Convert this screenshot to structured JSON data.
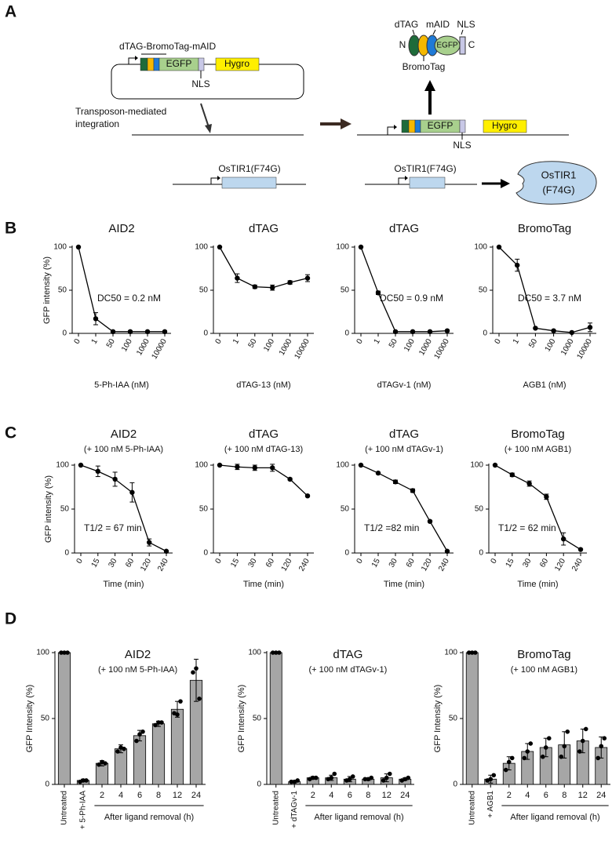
{
  "panel_labels": [
    "A",
    "B",
    "C",
    "D"
  ],
  "diagram": {
    "construct_label": "dTAG-BromoTag-mAID",
    "plasmid_egfp": "EGFP",
    "plasmid_hygro": "Hygro",
    "plasmid_nls": "NLS",
    "integration_lines": [
      "Transposon-mediated",
      "integration"
    ],
    "genome_egfp": "EGFP",
    "genome_hygro": "Hygro",
    "genome_nls": "NLS",
    "protein": {
      "n": "N",
      "c": "C",
      "dtag": "dTAG",
      "maid": "mAID",
      "nls": "NLS",
      "bromotag": "BromoTag",
      "egfp": "EGFP"
    },
    "ostir1_gene_left": "OsTIR1(F74G)",
    "ostir1_gene_right": "OsTIR1(F74G)",
    "ostir1_protein": [
      "OsTIR1",
      "(F74G)"
    ]
  },
  "chart_data": [
    {
      "type": "line",
      "title": "AID2",
      "categories": [
        "0",
        "1",
        "50",
        "100",
        "1000",
        "10000"
      ],
      "values": [
        100,
        17,
        2,
        2,
        2,
        2
      ],
      "errors": [
        0,
        7,
        1,
        1,
        0.5,
        1
      ],
      "color": "#000000",
      "ylim": [
        0,
        100
      ],
      "yticks": [
        0,
        50,
        100
      ],
      "ylabel": "GFP intensity (%)",
      "xlabel": "5-Ph-IAA (nM)",
      "annotation": "DC50 = 0.2 nM"
    },
    {
      "type": "line",
      "title": "dTAG",
      "categories": [
        "0",
        "1",
        "50",
        "100",
        "1000",
        "10000"
      ],
      "values": [
        100,
        64,
        54,
        53,
        59,
        64
      ],
      "errors": [
        0,
        5,
        2,
        3,
        2,
        4
      ],
      "color": "#000000",
      "ylim": [
        0,
        100
      ],
      "yticks": [
        0,
        50,
        100
      ],
      "xlabel": "dTAG-13 (nM)"
    },
    {
      "type": "line",
      "title": "dTAG",
      "categories": [
        "0",
        "1",
        "50",
        "100",
        "1000",
        "10000"
      ],
      "values": [
        100,
        47,
        2,
        2,
        2,
        3
      ],
      "errors": [
        0,
        2,
        1,
        0.5,
        0.5,
        1
      ],
      "color": "#000000",
      "ylim": [
        0,
        100
      ],
      "yticks": [
        0,
        50,
        100
      ],
      "xlabel": "dTAGv-1 (nM)",
      "annotation": "DC50 = 0.9 nM"
    },
    {
      "type": "line",
      "title": "BromoTag",
      "categories": [
        "0",
        "1",
        "50",
        "100",
        "1000",
        "10000"
      ],
      "values": [
        100,
        79,
        6,
        3,
        1,
        7
      ],
      "errors": [
        0,
        7,
        0.5,
        0.5,
        0.5,
        5
      ],
      "color": "#000000",
      "ylim": [
        0,
        100
      ],
      "yticks": [
        0,
        50,
        100
      ],
      "xlabel": "AGB1 (nM)",
      "annotation": "DC50 = 3.7 nM"
    },
    {
      "type": "line",
      "title": "AID2",
      "subtitle": "(+ 100 nM 5-Ph-IAA)",
      "categories": [
        "0",
        "15",
        "30",
        "60",
        "120",
        "240"
      ],
      "values": [
        100,
        93,
        84,
        69,
        12,
        2
      ],
      "errors": [
        0,
        6,
        8,
        11,
        4,
        0.5
      ],
      "color": "#000000",
      "ylim": [
        0,
        100
      ],
      "yticks": [
        0,
        50,
        100
      ],
      "ylabel": "GFP intensity  (%)",
      "xlabel": "Time (min)",
      "annotation": "T1/2 = 67 min"
    },
    {
      "type": "line",
      "title": "dTAG",
      "subtitle": "(+ 100 nM dTAG-13)",
      "categories": [
        "0",
        "15",
        "30",
        "60",
        "120",
        "240"
      ],
      "values": [
        100,
        98,
        97,
        97,
        84,
        65
      ],
      "errors": [
        0,
        3,
        3,
        4,
        1,
        1
      ],
      "color": "#000000",
      "ylim": [
        0,
        100
      ],
      "yticks": [
        0,
        50,
        100
      ],
      "xlabel": "Time (min)"
    },
    {
      "type": "line",
      "title": "dTAG",
      "subtitle": "(+ 100 nM dTAGv-1)",
      "categories": [
        "0",
        "15",
        "30",
        "60",
        "120",
        "240"
      ],
      "values": [
        100,
        91,
        81,
        71,
        36,
        2
      ],
      "errors": [
        0,
        1,
        2,
        2,
        1,
        0.5
      ],
      "color": "#000000",
      "ylim": [
        0,
        100
      ],
      "yticks": [
        0,
        50,
        100
      ],
      "xlabel": "Time (min)",
      "annotation": "T1/2 =82 min"
    },
    {
      "type": "line",
      "title": "BromoTag",
      "subtitle": "(+ 100 nM AGB1)",
      "categories": [
        "0",
        "15",
        "30",
        "60",
        "120",
        "240"
      ],
      "values": [
        100,
        89,
        79,
        64,
        16,
        4
      ],
      "errors": [
        0,
        2,
        3,
        3,
        7,
        0.5
      ],
      "color": "#000000",
      "ylim": [
        0,
        100
      ],
      "yticks": [
        0,
        50,
        100
      ],
      "xlabel": "Time (min)",
      "annotation": "T1/2 = 62 min"
    },
    {
      "type": "bar",
      "title": "AID2",
      "subtitle": "(+ 100 nM 5-Ph-IAA)",
      "categories": [
        "Untreated",
        "+ 5-Ph-IAA",
        "2",
        "4",
        "6",
        "8",
        "12",
        "24"
      ],
      "values": [
        100,
        3,
        16,
        27,
        37,
        46,
        57,
        79
      ],
      "errors": [
        0,
        1,
        2,
        3,
        4,
        2,
        6,
        16
      ],
      "replicates": [
        [
          100,
          100,
          100
        ],
        [
          2,
          3,
          3
        ],
        [
          15,
          17,
          16
        ],
        [
          25,
          28,
          27
        ],
        [
          33,
          38,
          40
        ],
        [
          45,
          47,
          47
        ],
        [
          54,
          53,
          63
        ],
        [
          85,
          88,
          65
        ]
      ],
      "color": "#a6a6a6",
      "ylim": [
        0,
        100
      ],
      "yticks": [
        0,
        50,
        100
      ],
      "ylabel": "GFP Intensity (%)",
      "bracket_label": "After ligand removal (h)"
    },
    {
      "type": "bar",
      "title": "dTAG",
      "subtitle": "(+ 100 nM dTAGv-1)",
      "categories": [
        "Untreated",
        "+ dTAGv-1",
        "2",
        "4",
        "6",
        "8",
        "12",
        "24"
      ],
      "values": [
        100,
        2,
        5,
        5,
        4,
        4,
        5,
        4
      ],
      "errors": [
        0,
        1,
        1,
        2,
        2,
        1,
        3,
        1
      ],
      "replicates": [
        [
          100,
          100,
          100
        ],
        [
          2,
          2,
          3
        ],
        [
          4,
          5,
          5
        ],
        [
          4,
          5,
          8
        ],
        [
          3,
          4,
          6
        ],
        [
          4,
          4,
          5
        ],
        [
          3,
          5,
          8
        ],
        [
          3,
          4,
          5
        ]
      ],
      "color": "#a6a6a6",
      "ylim": [
        0,
        100
      ],
      "yticks": [
        0,
        50,
        100
      ],
      "ylabel": "GFP Intensity (%)",
      "bracket_label": "After ligand removal (h)"
    },
    {
      "type": "bar",
      "title": "BromoTag",
      "subtitle": "(+ 100 nM AGB1)",
      "categories": [
        "Untreated",
        "+ AGB1",
        "2",
        "4",
        "6",
        "8",
        "12",
        "24"
      ],
      "values": [
        100,
        4,
        16,
        25,
        28,
        30,
        33,
        28
      ],
      "errors": [
        0,
        3,
        5,
        6,
        7,
        10,
        9,
        8
      ],
      "replicates": [
        [
          100,
          100,
          100
        ],
        [
          3,
          4,
          7
        ],
        [
          11,
          17,
          20
        ],
        [
          20,
          25,
          31
        ],
        [
          21,
          28,
          35
        ],
        [
          21,
          29,
          40
        ],
        [
          25,
          33,
          42
        ],
        [
          20,
          29,
          35
        ]
      ],
      "color": "#a6a6a6",
      "ylim": [
        0,
        100
      ],
      "yticks": [
        0,
        50,
        100
      ],
      "ylabel": "GFP Intensity (%)",
      "bracket_label": "After ligand removal (h)"
    }
  ]
}
